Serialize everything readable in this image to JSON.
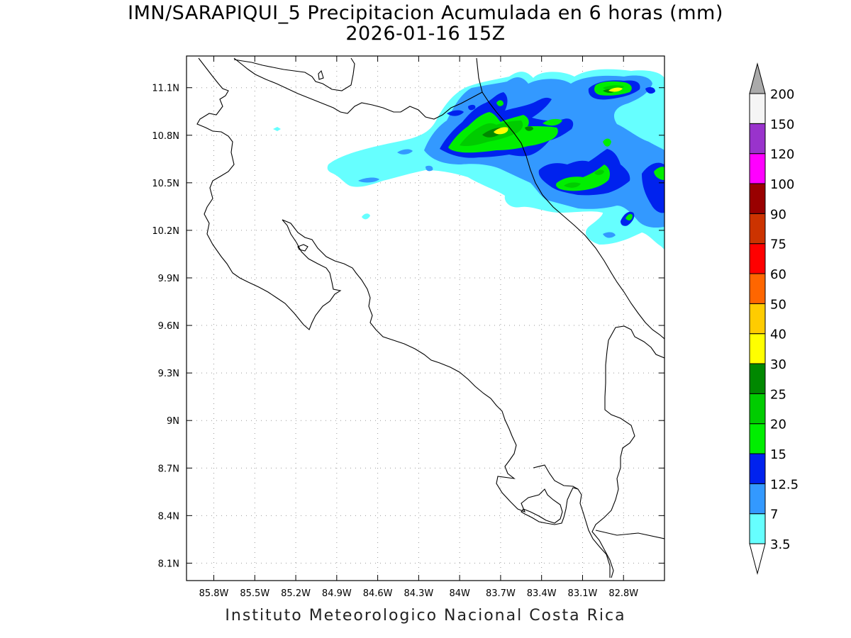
{
  "title": {
    "line1": "IMN/SARAPIQUI_5 Precipitacion Acumulada en 6 horas (mm)",
    "line2": "2026-01-16 15Z"
  },
  "footer": "Instituto Meteorologico Nacional Costa Rica",
  "map": {
    "lon_range": [
      -86.0,
      -82.5
    ],
    "lat_range": [
      7.99,
      11.3
    ],
    "lon_ticks": [
      {
        "value": -85.8,
        "label": "85.8W"
      },
      {
        "value": -85.5,
        "label": "85.5W"
      },
      {
        "value": -85.2,
        "label": "85.2W"
      },
      {
        "value": -84.9,
        "label": "84.9W"
      },
      {
        "value": -84.6,
        "label": "84.6W"
      },
      {
        "value": -84.3,
        "label": "84.3W"
      },
      {
        "value": -84.0,
        "label": "84W"
      },
      {
        "value": -83.7,
        "label": "83.7W"
      },
      {
        "value": -83.4,
        "label": "83.4W"
      },
      {
        "value": -83.1,
        "label": "83.1W"
      },
      {
        "value": -82.8,
        "label": "82.8W"
      }
    ],
    "lat_ticks": [
      {
        "value": 11.1,
        "label": "11.1N"
      },
      {
        "value": 10.8,
        "label": "10.8N"
      },
      {
        "value": 10.5,
        "label": "10.5N"
      },
      {
        "value": 10.2,
        "label": "10.2N"
      },
      {
        "value": 9.9,
        "label": "9.9N"
      },
      {
        "value": 9.6,
        "label": "9.6N"
      },
      {
        "value": 9.3,
        "label": "9.3N"
      },
      {
        "value": 9.0,
        "label": "9N"
      },
      {
        "value": 8.7,
        "label": "8.7N"
      },
      {
        "value": 8.4,
        "label": "8.4N"
      },
      {
        "value": 8.1,
        "label": "8.1N"
      }
    ],
    "grid": "dotted"
  },
  "colorbar": {
    "colors_bottom_to_top": [
      "#66ffff",
      "#3399ff",
      "#0022ee",
      "#00ee00",
      "#00cc00",
      "#008800",
      "#ffff00",
      "#ffcc00",
      "#ff6600",
      "#ff0000",
      "#cc3300",
      "#990000",
      "#ff00ff",
      "#9933cc",
      "#f5f5f5"
    ],
    "labels_bottom_to_top": [
      "3.5",
      "7",
      "12.5",
      "15",
      "20",
      "25",
      "30",
      "40",
      "50",
      "60",
      "75",
      "90",
      "100",
      "120",
      "150",
      "200"
    ],
    "upper_arrow_color": "#aaaaaa",
    "lower_arrow_color": "#ffffff"
  },
  "precip_colors": {
    "c3_5": "#66ffff",
    "c7": "#3399ff",
    "c12_5": "#0022ee",
    "c15": "#00ee00",
    "c20": "#00cc00",
    "c25": "#008800",
    "c30": "#ffff00"
  }
}
